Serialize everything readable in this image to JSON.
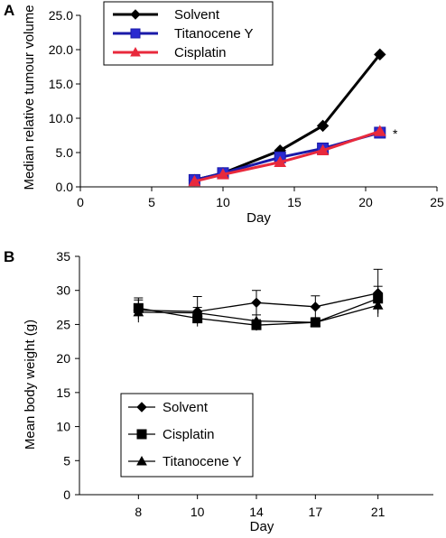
{
  "chart_data": [
    {
      "panel_label": "A",
      "type": "line",
      "xlabel": "Day",
      "ylabel": "Median relative tumour volume",
      "xlim": [
        0,
        25
      ],
      "ylim": [
        0.0,
        25.0
      ],
      "xticks": [
        "0",
        "5",
        "10",
        "15",
        "20",
        "25"
      ],
      "yticks": [
        "0.0",
        "5.0",
        "10.0",
        "15.0",
        "20.0",
        "25.0"
      ],
      "x": [
        8,
        10,
        14,
        17,
        21
      ],
      "series": [
        {
          "name": "Solvent",
          "values": [
            1.0,
            2.0,
            5.3,
            8.9,
            19.3
          ],
          "color": "#000000",
          "marker": "diamond"
        },
        {
          "name": "Titanocene Y",
          "values": [
            1.0,
            2.0,
            4.3,
            5.6,
            7.9
          ],
          "color": "#1a1aa8",
          "marker": "square"
        },
        {
          "name": "Cisplatin",
          "values": [
            0.8,
            1.8,
            3.6,
            5.3,
            8.1
          ],
          "color": "#e8293c",
          "marker": "triangle"
        }
      ],
      "annotation": "*",
      "legend_position": "top-center",
      "grid": false
    },
    {
      "panel_label": "B",
      "type": "line",
      "xlabel": "Day",
      "ylabel": "Mean body weight (g)",
      "ylim": [
        0,
        35
      ],
      "categories": [
        "8",
        "10",
        "14",
        "17",
        "21"
      ],
      "yticks": [
        "0",
        "5",
        "10",
        "15",
        "20",
        "25",
        "30",
        "35"
      ],
      "series": [
        {
          "name": "Solvent",
          "values": [
            27.1,
            26.9,
            28.2,
            27.6,
            29.6
          ],
          "err": [
            1.8,
            2.2,
            1.8,
            1.6,
            3.5
          ],
          "color": "#000000",
          "marker": "diamond"
        },
        {
          "name": "Cisplatin",
          "values": [
            27.4,
            25.9,
            24.9,
            25.3,
            28.8
          ],
          "err": [
            1.2,
            0.8,
            0.8,
            0.6,
            1.8
          ],
          "color": "#000000",
          "marker": "square"
        },
        {
          "name": "Titanocene Y",
          "values": [
            26.8,
            26.7,
            25.5,
            25.3,
            27.8
          ],
          "err": [
            1.0,
            0.8,
            0.9,
            0.7,
            1.2
          ],
          "color": "#000000",
          "marker": "triangle"
        }
      ],
      "legend_position": "bottom-left",
      "grid": false
    }
  ]
}
